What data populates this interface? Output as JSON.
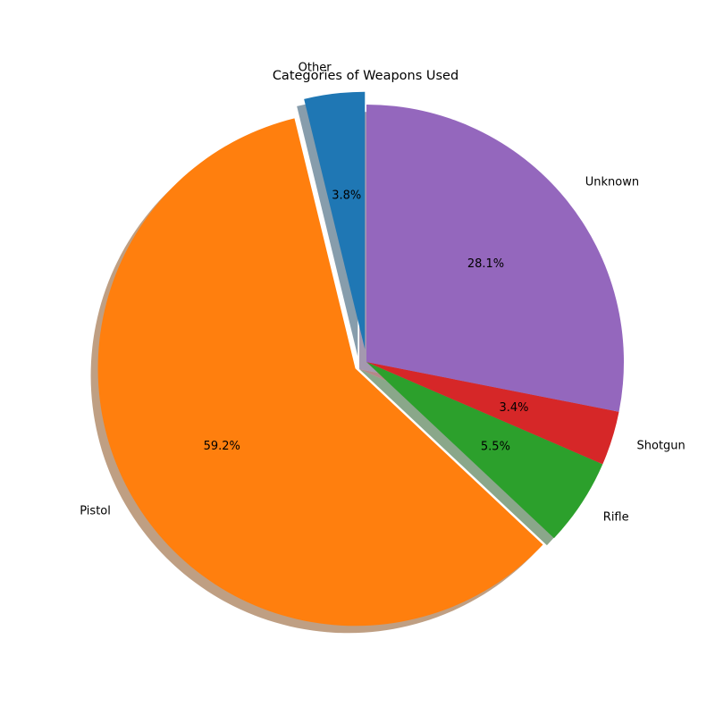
{
  "chart_data": {
    "type": "pie",
    "title": "Categories of Weapons Used",
    "shadow": true,
    "start_angle_deg": 90,
    "direction": "counterclockwise",
    "slices": [
      {
        "label": "Other",
        "value": 3.8,
        "pct_label": "3.8%",
        "color": "#1f77b4",
        "exploded": true
      },
      {
        "label": "Pistol",
        "value": 59.2,
        "pct_label": "59.2%",
        "color": "#ff7f0e",
        "exploded": true
      },
      {
        "label": "Rifle",
        "value": 5.5,
        "pct_label": "5.5%",
        "color": "#2ca02c",
        "exploded": false
      },
      {
        "label": "Shotgun",
        "value": 3.4,
        "pct_label": "3.4%",
        "color": "#d62728",
        "exploded": false
      },
      {
        "label": "Unknown",
        "value": 28.1,
        "pct_label": "28.1%",
        "color": "#9467bd",
        "exploded": false
      }
    ]
  }
}
